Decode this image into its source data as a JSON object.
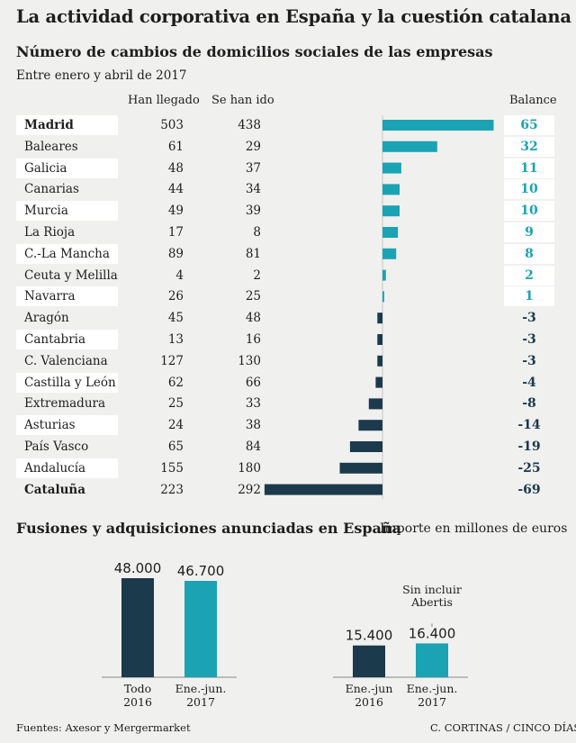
{
  "title": "La actividad corporativa en España y la cuestión catalana",
  "subtitle": "Número de cambios de domicilios sociales de las empresas",
  "period": "Entre enero y abril de 2017",
  "columns": {
    "arrived": "Han llegado",
    "left": "Se han ido",
    "balance": "Balance"
  },
  "colors": {
    "positive": "#1ba3b3",
    "negative": "#1b3a4b",
    "band": "#ffffff",
    "background": "#f0f0ef"
  },
  "chart_data": [
    {
      "type": "bar",
      "orientation": "horizontal",
      "title": "Número de cambios de domicilios sociales de las empresas",
      "subtitle": "Entre enero y abril de 2017",
      "categories": [
        "Madrid",
        "Baleares",
        "Galicia",
        "Canarias",
        "Murcia",
        "La Rioja",
        "C.-La Mancha",
        "Ceuta y Melilla",
        "Navarra",
        "Aragón",
        "Cantabria",
        "C. Valenciana",
        "Castilla y León",
        "Extremadura",
        "Asturias",
        "País Vasco",
        "Andalucía",
        "Cataluña"
      ],
      "series": [
        {
          "name": "Han llegado",
          "values": [
            503,
            61,
            48,
            44,
            49,
            17,
            89,
            4,
            26,
            45,
            13,
            127,
            62,
            25,
            24,
            65,
            155,
            223
          ]
        },
        {
          "name": "Se han ido",
          "values": [
            438,
            29,
            37,
            34,
            39,
            8,
            81,
            2,
            25,
            48,
            16,
            130,
            66,
            33,
            38,
            84,
            180,
            292
          ]
        },
        {
          "name": "Balance",
          "values": [
            65,
            32,
            11,
            10,
            10,
            9,
            8,
            2,
            1,
            -3,
            -3,
            -3,
            -4,
            -8,
            -14,
            -19,
            -25,
            -69
          ]
        }
      ],
      "bold_rows": [
        "Madrid",
        "Cataluña"
      ]
    },
    {
      "type": "bar",
      "title": "Fusiones y adquisiciones anunciadas en España",
      "unit_note": "Importe en millones de euros",
      "groups": [
        {
          "categories": [
            "Todo\n2016",
            "Ene.-jun.\n2017"
          ],
          "values": [
            48000,
            46700
          ],
          "value_labels": [
            "48.000",
            "46.700"
          ]
        },
        {
          "categories": [
            "Ene.-jun\n2016",
            "Ene.-jun.\n2017"
          ],
          "values": [
            15400,
            16400
          ],
          "value_labels": [
            "15.400",
            "16.400"
          ],
          "annotation": "Sin incluir\nAbertis"
        }
      ]
    }
  ],
  "section2": {
    "title": "Fusiones y adquisiciones anunciadas en España",
    "note": "Importe en millones de euros"
  },
  "footer": {
    "sources": "Fuentes: Axesor y Mergermarket",
    "credit": "C. CORTINAS / CINCO DÍAS"
  }
}
